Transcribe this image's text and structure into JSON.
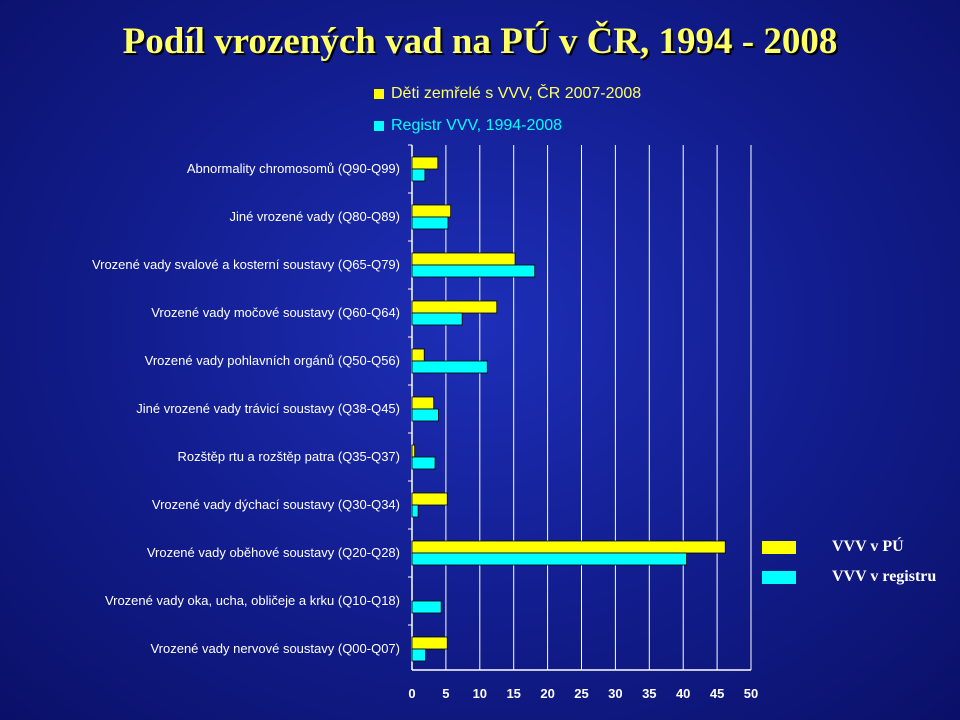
{
  "chart_data": {
    "type": "bar",
    "orientation": "horizontal",
    "title": "Podíl vrozených vad na PÚ v ČR, 1994 - 2008",
    "categories": [
      "Abnormality chromosomů (Q90-Q99)",
      "Jiné vrozené vady (Q80-Q89)",
      "Vrozené vady svalové a kosterní soustavy (Q65-Q79)",
      "Vrozené vady močové soustavy (Q60-Q64)",
      "Vrozené vady pohlavních orgánů (Q50-Q56)",
      "Jiné vrozené vady trávicí soustavy (Q38-Q45)",
      "Rozštěp rtu a rozštěp patra (Q35-Q37)",
      "Vrozené vady dýchací soustavy (Q30-Q34)",
      "Vrozené vady oběhové soustavy (Q20-Q28)",
      "Vrozené vady oka, ucha, obličeje a krku (Q10-Q18)",
      "Vrozené vady nervové soustavy (Q00-Q07)"
    ],
    "series": [
      {
        "name": "VVV v PÚ",
        "color": "#ffff00",
        "values": [
          3.8,
          5.7,
          15.2,
          12.5,
          1.8,
          3.2,
          0.4,
          5.2,
          46.2,
          0,
          5.2
        ]
      },
      {
        "name": "VVV v registru",
        "color": "#00ffff",
        "values": [
          1.9,
          5.3,
          18.1,
          7.4,
          11.1,
          3.9,
          3.4,
          0.9,
          40.5,
          4.3,
          2.0
        ]
      }
    ],
    "xlim": [
      0,
      50
    ],
    "xticks": [
      "0",
      "5",
      "10",
      "15",
      "20",
      "25",
      "30",
      "35",
      "40",
      "45",
      "50"
    ],
    "grid": "vertical",
    "top_legend": [
      {
        "label": "Děti zemřelé s VVV, ČR 2007-2008",
        "color": "#ffff00"
      },
      {
        "label": "Registr VVV, 1994-2008",
        "color": "#00ffff"
      }
    ],
    "legend_position": "right"
  }
}
